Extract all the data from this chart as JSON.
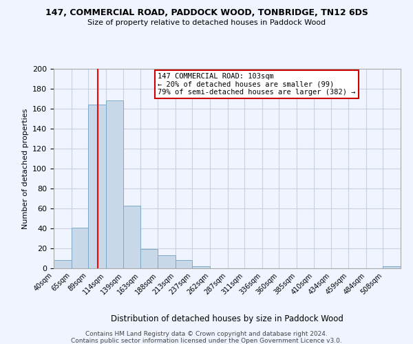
{
  "title": "147, COMMERCIAL ROAD, PADDOCK WOOD, TONBRIDGE, TN12 6DS",
  "subtitle": "Size of property relative to detached houses in Paddock Wood",
  "xlabel": "Distribution of detached houses by size in Paddock Wood",
  "ylabel": "Number of detached properties",
  "bar_color": "#c8d8e8",
  "bar_edgecolor": "#7aaac8",
  "bin_edges": [
    40,
    65,
    89,
    114,
    139,
    163,
    188,
    213,
    237,
    262,
    287,
    311,
    336,
    360,
    385,
    410,
    434,
    459,
    484,
    508,
    533
  ],
  "bar_heights": [
    8,
    41,
    164,
    168,
    63,
    19,
    13,
    8,
    2,
    0,
    0,
    0,
    0,
    0,
    0,
    0,
    0,
    0,
    0,
    2
  ],
  "red_line_x": 103,
  "annotation_text": "147 COMMERCIAL ROAD: 103sqm\n← 20% of detached houses are smaller (99)\n79% of semi-detached houses are larger (382) →",
  "annotation_box_color": "#ffffff",
  "annotation_box_edgecolor": "#cc0000",
  "ylim": [
    0,
    200
  ],
  "yticks": [
    0,
    20,
    40,
    60,
    80,
    100,
    120,
    140,
    160,
    180,
    200
  ],
  "footer_line1": "Contains HM Land Registry data © Crown copyright and database right 2024.",
  "footer_line2": "Contains public sector information licensed under the Open Government Licence v3.0.",
  "background_color": "#f0f4ff",
  "grid_color": "#c8d0e0"
}
